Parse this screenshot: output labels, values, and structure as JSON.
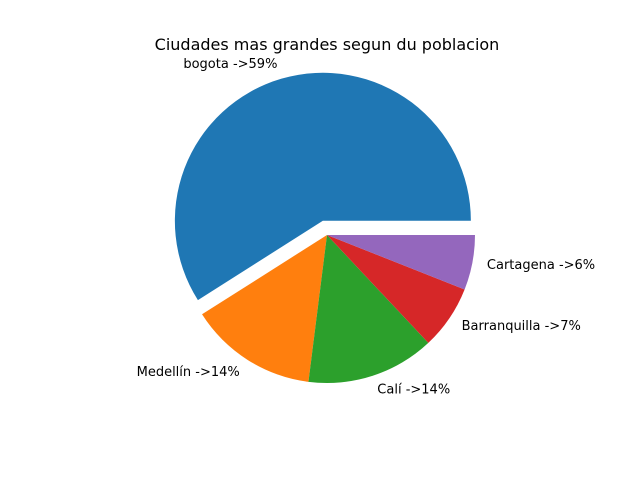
{
  "chart_data": {
    "type": "pie",
    "title": "Ciudades mas grandes segun du poblacion",
    "categories": [
      "bogota",
      "Medellín",
      "Calí",
      "Barranquilla",
      "Cartagena"
    ],
    "values": [
      59,
      14,
      14,
      7,
      6
    ],
    "labels": [
      "bogota ->59%",
      "Medellín ->14%",
      "Calí ->14%",
      "Barranquilla ->7%",
      "Cartagena ->6%"
    ],
    "colors": [
      "#1f77b4",
      "#ff7f0e",
      "#2ca02c",
      "#d62728",
      "#9467bd"
    ],
    "explode": [
      0.1,
      0,
      0,
      0,
      0
    ],
    "start_angle": 0,
    "legend": "none"
  }
}
